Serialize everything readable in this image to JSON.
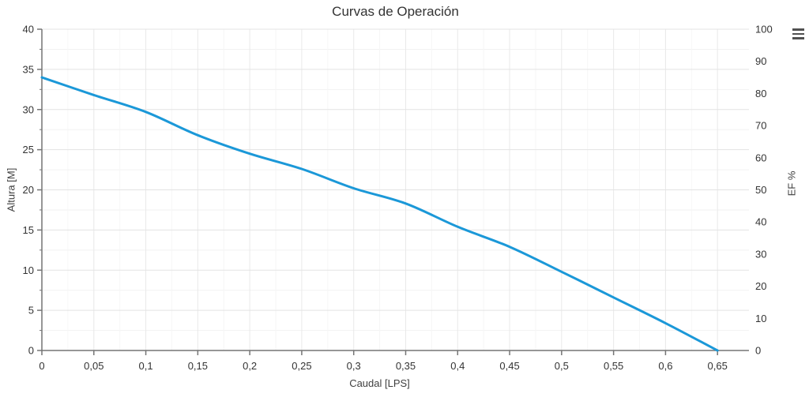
{
  "chart": {
    "title": "Curvas de Operación",
    "context_menu_icon": "hamburger-menu-icon"
  },
  "chart_data": {
    "type": "line",
    "title": "Curvas de Operación",
    "xlabel": "Caudal [LPS]",
    "ylabel_left": "Altura [M]",
    "ylabel_right": "EF %",
    "x": [
      0,
      0.05,
      0.1,
      0.15,
      0.2,
      0.25,
      0.3,
      0.35,
      0.4,
      0.45,
      0.5,
      0.55,
      0.6,
      0.65
    ],
    "series": [
      {
        "name": "Altura",
        "axis": "left",
        "color": "#1b98d8",
        "values": [
          34,
          31.8,
          29.7,
          26.8,
          24.5,
          22.6,
          20.2,
          18.3,
          15.4,
          12.9,
          9.8,
          6.6,
          3.4,
          0
        ]
      }
    ],
    "xlim": [
      0,
      0.677
    ],
    "ylim_left": [
      0,
      40
    ],
    "ylim_right": [
      0,
      100
    ],
    "x_tick_labels": [
      "0",
      "0,05",
      "0,1",
      "0,15",
      "0,2",
      "0,25",
      "0,3",
      "0,35",
      "0,4",
      "0,45",
      "0,5",
      "0,55",
      "0,6",
      "0,65"
    ],
    "x_tick_values": [
      0,
      0.05,
      0.1,
      0.15,
      0.2,
      0.25,
      0.3,
      0.35,
      0.4,
      0.45,
      0.5,
      0.55,
      0.6,
      0.65
    ],
    "y_left_tick_labels": [
      "0",
      "5",
      "10",
      "15",
      "20",
      "25",
      "30",
      "35",
      "40"
    ],
    "y_left_tick_values": [
      0,
      5,
      10,
      15,
      20,
      25,
      30,
      35,
      40
    ],
    "y_right_tick_labels": [
      "0",
      "10",
      "20",
      "30",
      "40",
      "50",
      "60",
      "70",
      "80",
      "90",
      "100"
    ],
    "y_right_tick_values": [
      0,
      10,
      20,
      30,
      40,
      50,
      60,
      70,
      80,
      90,
      100
    ],
    "grid": true,
    "legend": "none",
    "colors": {
      "line": "#1b98d8",
      "grid_major": "#e3e3e3",
      "grid_minor": "#f2f2f2",
      "grid_vertical": "#e9e9e9",
      "grid_vertical_minor": "#f6f6f6",
      "axis": "#757575",
      "tick_text": "#333333",
      "title_text": "#333333"
    }
  }
}
